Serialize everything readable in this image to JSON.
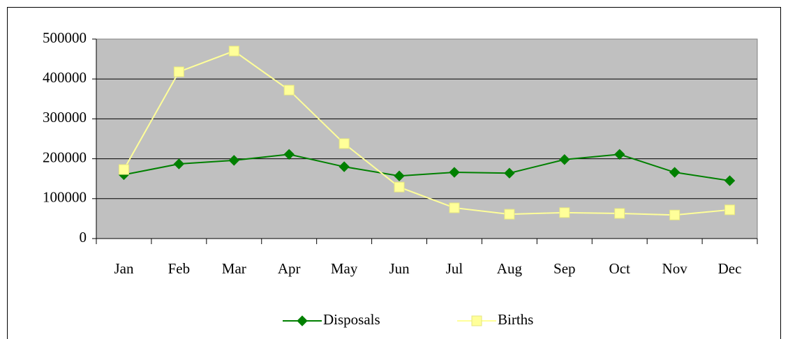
{
  "chart_data": {
    "type": "line",
    "categories": [
      "Jan",
      "Feb",
      "Mar",
      "Apr",
      "May",
      "Jun",
      "Jul",
      "Aug",
      "Sep",
      "Oct",
      "Nov",
      "Dec"
    ],
    "series": [
      {
        "name": "Disposals",
        "color": "#008000",
        "marker": "diamond",
        "values": [
          160000,
          187000,
          196000,
          211000,
          180000,
          157000,
          166000,
          164000,
          198000,
          211000,
          166000,
          145000
        ]
      },
      {
        "name": "Births",
        "color": "#ffff99",
        "marker": "square",
        "values": [
          173000,
          418000,
          470000,
          372000,
          238000,
          129000,
          77000,
          61000,
          65000,
          63000,
          59000,
          72000
        ]
      }
    ],
    "ylim": [
      0,
      500000
    ],
    "yticks": [
      0,
      100000,
      200000,
      300000,
      400000,
      500000
    ],
    "grid": true,
    "legend": "bottom"
  }
}
